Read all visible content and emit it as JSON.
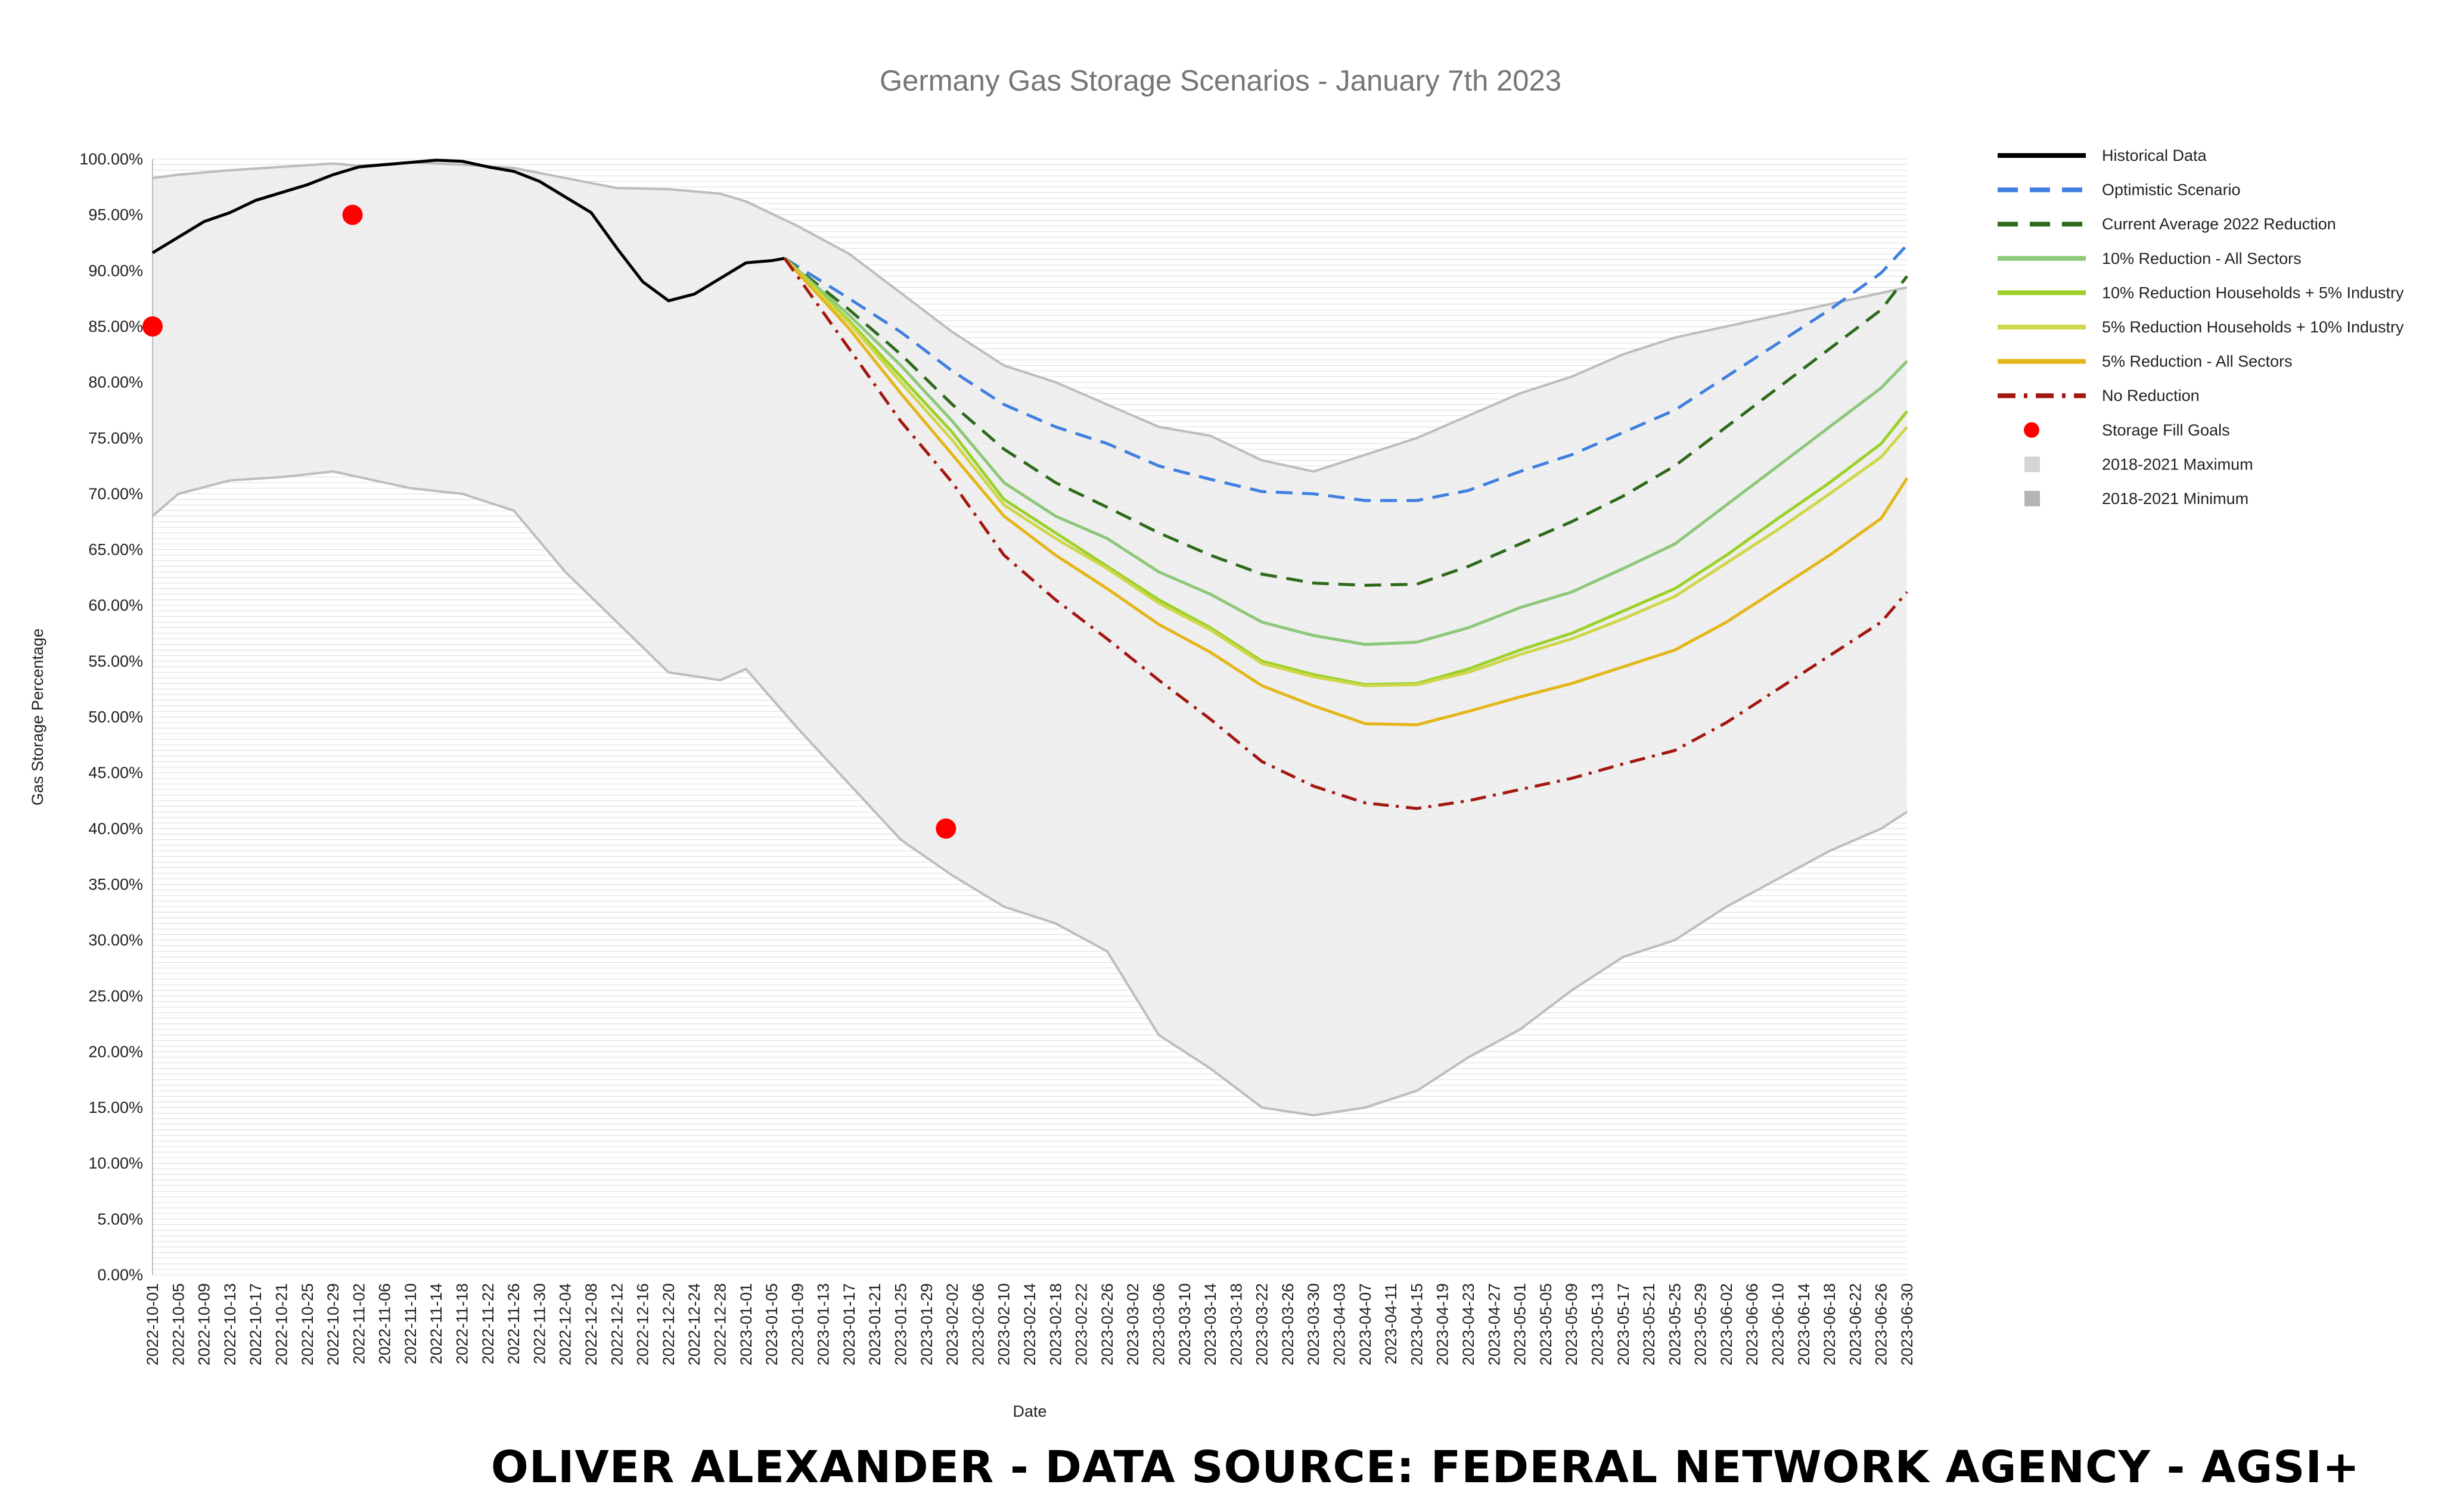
{
  "chart_data": {
    "type": "line",
    "title": "Germany Gas Storage Scenarios - January 7th 2023",
    "xlabel": "Date",
    "ylabel": "Gas Storage Percentage",
    "ylim": [
      0,
      100
    ],
    "yticks": [
      0,
      5,
      10,
      15,
      20,
      25,
      30,
      35,
      40,
      45,
      50,
      55,
      60,
      65,
      70,
      75,
      80,
      85,
      90,
      95,
      100
    ],
    "y_tick_format": "0.00%",
    "x_range": [
      "2022-10-01",
      "2023-06-30"
    ],
    "x_tick_interval_days": 4,
    "grid": true,
    "legend_position": "right",
    "band": {
      "x": [
        "2022-10-01",
        "2022-10-05",
        "2022-10-13",
        "2022-10-21",
        "2022-10-29",
        "2022-11-02",
        "2022-11-10",
        "2022-11-18",
        "2022-11-26",
        "2022-12-04",
        "2022-12-12",
        "2022-12-20",
        "2022-12-28",
        "2023-01-01",
        "2023-01-09",
        "2023-01-17",
        "2023-01-25",
        "2023-02-02",
        "2023-02-10",
        "2023-02-18",
        "2023-02-26",
        "2023-03-06",
        "2023-03-14",
        "2023-03-22",
        "2023-03-30",
        "2023-04-07",
        "2023-04-15",
        "2023-04-23",
        "2023-05-01",
        "2023-05-09",
        "2023-05-17",
        "2023-05-25",
        "2023-06-02",
        "2023-06-10",
        "2023-06-18",
        "2023-06-26",
        "2023-06-30"
      ],
      "max": [
        98.3,
        98.6,
        99.0,
        99.3,
        99.6,
        99.4,
        99.7,
        99.5,
        99.2,
        98.3,
        97.4,
        97.3,
        96.9,
        96.2,
        94.0,
        91.5,
        88.0,
        84.5,
        81.5,
        80.0,
        78.0,
        76.0,
        75.2,
        73.0,
        72.0,
        73.5,
        75.0,
        77.0,
        79.0,
        80.5,
        82.5,
        84.0,
        85.0,
        86.0,
        87.0,
        88.0,
        88.5
      ],
      "min": [
        68.0,
        70.0,
        71.2,
        71.5,
        72.0,
        71.5,
        70.5,
        70.0,
        68.5,
        63.0,
        58.5,
        54.0,
        53.3,
        54.3,
        49.0,
        44.0,
        39.0,
        35.8,
        33.0,
        31.5,
        29.0,
        21.5,
        18.5,
        15.0,
        14.3,
        15.0,
        16.5,
        19.5,
        22.0,
        25.5,
        28.5,
        30.0,
        33.0,
        35.5,
        38.0,
        40.0,
        41.5
      ]
    },
    "series": [
      {
        "name": "Historical Data",
        "color": "#000000",
        "dash": "solid",
        "x": [
          "2022-10-01",
          "2022-10-05",
          "2022-10-09",
          "2022-10-13",
          "2022-10-17",
          "2022-10-21",
          "2022-10-25",
          "2022-10-29",
          "2022-11-02",
          "2022-11-06",
          "2022-11-10",
          "2022-11-14",
          "2022-11-18",
          "2022-11-22",
          "2022-11-26",
          "2022-11-30",
          "2022-12-04",
          "2022-12-08",
          "2022-12-12",
          "2022-12-16",
          "2022-12-20",
          "2022-12-24",
          "2022-12-28",
          "2023-01-01",
          "2023-01-05",
          "2023-01-07"
        ],
        "y": [
          91.6,
          93.0,
          94.4,
          95.2,
          96.3,
          97.0,
          97.7,
          98.6,
          99.3,
          99.5,
          99.7,
          99.9,
          99.8,
          99.3,
          98.9,
          98.0,
          96.6,
          95.2,
          92.0,
          89.0,
          87.3,
          87.9,
          89.3,
          90.7,
          90.9,
          91.1
        ]
      },
      {
        "name": "Optimistic Scenario",
        "color": "#3f7fe0",
        "dash": "dashed",
        "x": [
          "2023-01-07",
          "2023-01-17",
          "2023-01-25",
          "2023-02-02",
          "2023-02-10",
          "2023-02-18",
          "2023-02-26",
          "2023-03-06",
          "2023-03-14",
          "2023-03-22",
          "2023-03-30",
          "2023-04-07",
          "2023-04-15",
          "2023-04-23",
          "2023-05-01",
          "2023-05-09",
          "2023-05-17",
          "2023-05-25",
          "2023-06-02",
          "2023-06-10",
          "2023-06-18",
          "2023-06-26",
          "2023-06-30"
        ],
        "y": [
          91.1,
          87.5,
          84.5,
          81.0,
          78.0,
          76.0,
          74.5,
          72.5,
          71.3,
          70.2,
          70.0,
          69.4,
          69.4,
          70.3,
          72.0,
          73.5,
          75.5,
          77.5,
          80.5,
          83.5,
          86.5,
          89.8,
          92.3
        ]
      },
      {
        "name": "Current Average 2022 Reduction",
        "color": "#2d6a1a",
        "dash": "dashed",
        "x": [
          "2023-01-07",
          "2023-01-17",
          "2023-01-25",
          "2023-02-02",
          "2023-02-10",
          "2023-02-18",
          "2023-02-26",
          "2023-03-06",
          "2023-03-14",
          "2023-03-22",
          "2023-03-30",
          "2023-04-07",
          "2023-04-15",
          "2023-04-23",
          "2023-05-01",
          "2023-05-09",
          "2023-05-17",
          "2023-05-25",
          "2023-06-02",
          "2023-06-10",
          "2023-06-18",
          "2023-06-26",
          "2023-06-30"
        ],
        "y": [
          91.1,
          86.5,
          82.5,
          78.0,
          74.0,
          71.0,
          68.8,
          66.5,
          64.5,
          62.8,
          62.0,
          61.8,
          61.9,
          63.5,
          65.5,
          67.5,
          69.8,
          72.5,
          76.0,
          79.5,
          83.0,
          86.5,
          89.5
        ]
      },
      {
        "name": "10% Reduction - All Sectors",
        "color": "#8dc87a",
        "dash": "solid",
        "x": [
          "2023-01-07",
          "2023-01-17",
          "2023-01-25",
          "2023-02-02",
          "2023-02-10",
          "2023-02-18",
          "2023-02-26",
          "2023-03-06",
          "2023-03-14",
          "2023-03-22",
          "2023-03-30",
          "2023-04-07",
          "2023-04-15",
          "2023-04-23",
          "2023-05-01",
          "2023-05-09",
          "2023-05-17",
          "2023-05-25",
          "2023-06-02",
          "2023-06-10",
          "2023-06-18",
          "2023-06-26",
          "2023-06-30"
        ],
        "y": [
          91.1,
          86.0,
          81.5,
          76.5,
          71.0,
          68.0,
          66.0,
          63.0,
          61.0,
          58.5,
          57.3,
          56.5,
          56.7,
          58.0,
          59.8,
          61.2,
          63.3,
          65.5,
          69.0,
          72.5,
          76.0,
          79.5,
          81.9
        ]
      },
      {
        "name": "10% Reduction Households + 5% Industry",
        "color": "#9bd12a",
        "dash": "solid",
        "x": [
          "2023-01-07",
          "2023-01-17",
          "2023-01-25",
          "2023-02-02",
          "2023-02-10",
          "2023-02-18",
          "2023-02-26",
          "2023-03-06",
          "2023-03-14",
          "2023-03-22",
          "2023-03-30",
          "2023-04-07",
          "2023-04-15",
          "2023-04-23",
          "2023-05-01",
          "2023-05-09",
          "2023-05-17",
          "2023-05-25",
          "2023-06-02",
          "2023-06-10",
          "2023-06-18",
          "2023-06-26",
          "2023-06-30"
        ],
        "y": [
          91.1,
          85.5,
          80.5,
          75.5,
          69.5,
          66.5,
          63.5,
          60.5,
          58.0,
          55.0,
          53.8,
          52.9,
          53.0,
          54.3,
          56.0,
          57.5,
          59.5,
          61.5,
          64.5,
          67.8,
          71.0,
          74.5,
          77.4
        ]
      },
      {
        "name": "5% Reduction Households + 10% Industry",
        "color": "#cfd64a",
        "dash": "solid",
        "x": [
          "2023-01-07",
          "2023-01-17",
          "2023-01-25",
          "2023-02-02",
          "2023-02-10",
          "2023-02-18",
          "2023-02-26",
          "2023-03-06",
          "2023-03-14",
          "2023-03-22",
          "2023-03-30",
          "2023-04-07",
          "2023-04-15",
          "2023-04-23",
          "2023-05-01",
          "2023-05-09",
          "2023-05-17",
          "2023-05-25",
          "2023-06-02",
          "2023-06-10",
          "2023-06-18",
          "2023-06-26",
          "2023-06-30"
        ],
        "y": [
          91.1,
          85.3,
          80.0,
          74.8,
          69.0,
          66.0,
          63.3,
          60.2,
          57.8,
          54.8,
          53.6,
          52.8,
          52.9,
          54.0,
          55.6,
          57.0,
          58.8,
          60.8,
          63.8,
          66.8,
          70.0,
          73.3,
          76.0
        ]
      },
      {
        "name": "5% Reduction - All Sectors",
        "color": "#e3b61a",
        "dash": "solid",
        "x": [
          "2023-01-07",
          "2023-01-17",
          "2023-01-25",
          "2023-02-02",
          "2023-02-10",
          "2023-02-18",
          "2023-02-26",
          "2023-03-06",
          "2023-03-14",
          "2023-03-22",
          "2023-03-30",
          "2023-04-07",
          "2023-04-15",
          "2023-04-23",
          "2023-05-01",
          "2023-05-09",
          "2023-05-17",
          "2023-05-25",
          "2023-06-02",
          "2023-06-10",
          "2023-06-18",
          "2023-06-26",
          "2023-06-30"
        ],
        "y": [
          91.1,
          84.8,
          79.0,
          73.5,
          68.0,
          64.5,
          61.5,
          58.3,
          55.8,
          52.8,
          51.0,
          49.4,
          49.3,
          50.5,
          51.8,
          53.0,
          54.5,
          56.0,
          58.5,
          61.5,
          64.5,
          67.8,
          71.4
        ]
      },
      {
        "name": "No Reduction",
        "color": "#a3170f",
        "dash": "dashdot",
        "x": [
          "2023-01-07",
          "2023-01-17",
          "2023-01-25",
          "2023-02-02",
          "2023-02-10",
          "2023-02-18",
          "2023-02-26",
          "2023-03-06",
          "2023-03-14",
          "2023-03-22",
          "2023-03-30",
          "2023-04-07",
          "2023-04-15",
          "2023-04-23",
          "2023-05-01",
          "2023-05-09",
          "2023-05-17",
          "2023-05-25",
          "2023-06-02",
          "2023-06-10",
          "2023-06-18",
          "2023-06-26",
          "2023-06-30"
        ],
        "y": [
          91.1,
          83.0,
          76.5,
          71.0,
          64.5,
          60.5,
          57.0,
          53.3,
          49.8,
          46.0,
          43.8,
          42.3,
          41.8,
          42.5,
          43.5,
          44.5,
          45.8,
          47.0,
          49.5,
          52.5,
          55.5,
          58.5,
          61.2
        ]
      }
    ],
    "points": {
      "name": "Storage Fill Goals",
      "color": "#ff0000",
      "x": [
        "2022-10-01",
        "2022-11-01",
        "2023-02-01"
      ],
      "y": [
        85,
        95,
        40
      ]
    },
    "legend": [
      {
        "label": "Historical Data",
        "type": "solid",
        "color": "#000000"
      },
      {
        "label": "Optimistic Scenario",
        "type": "dashed",
        "color": "#3f7fe0"
      },
      {
        "label": "Current Average 2022 Reduction",
        "type": "dashed",
        "color": "#2d6a1a"
      },
      {
        "label": "10% Reduction - All Sectors",
        "type": "solid",
        "color": "#8dc87a"
      },
      {
        "label": "10% Reduction Households + 5% Industry",
        "type": "solid",
        "color": "#9bd12a"
      },
      {
        "label": "5% Reduction Households + 10% Industry",
        "type": "solid",
        "color": "#cfd64a"
      },
      {
        "label": "5% Reduction - All Sectors",
        "type": "solid",
        "color": "#e3b61a"
      },
      {
        "label": "No Reduction",
        "type": "dashdot",
        "color": "#a3170f"
      },
      {
        "label": "Storage Fill Goals",
        "type": "dot",
        "color": "#ff0000"
      },
      {
        "label": "2018-2021 Maximum",
        "type": "square",
        "color": "#d4d4d4"
      },
      {
        "label": "2018-2021 Minimum",
        "type": "square",
        "color": "#b4b4b4"
      }
    ],
    "band_colors": {
      "fill": "#ececec",
      "edge": "#bdbdbd"
    },
    "credit": "OLIVER ALEXANDER - DATA SOURCE:  FEDERAL NETWORK AGENCY - AGSI+"
  }
}
